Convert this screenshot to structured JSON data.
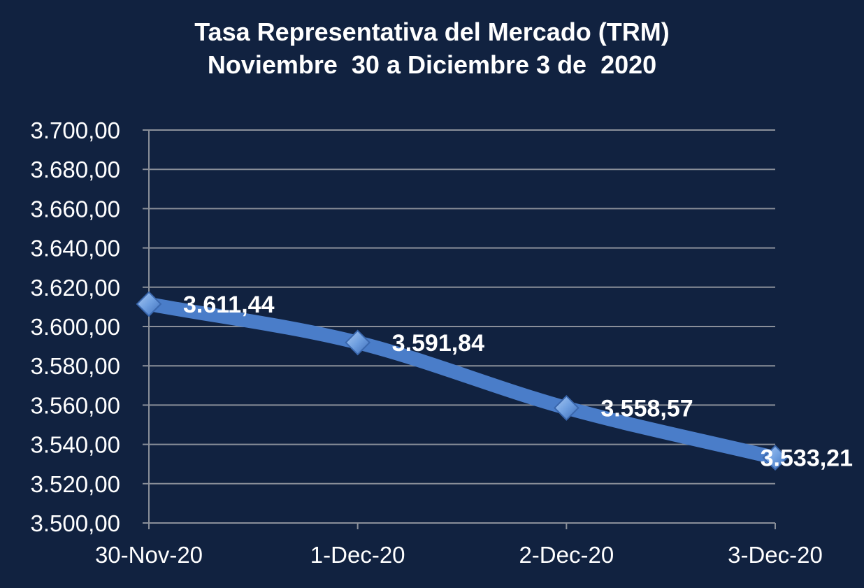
{
  "chart_data": {
    "type": "line",
    "title_line1": "Tasa Representativa del Mercado (TRM)",
    "title_line2": "Noviembre  30 a Diciembre 3 de  2020",
    "categories": [
      "30-Nov-20",
      "1-Dec-20",
      "2-Dec-20",
      "3-Dec-20"
    ],
    "series": [
      {
        "values": [
          3611.44,
          3591.84,
          3558.57,
          3533.21
        ]
      }
    ],
    "data_labels": [
      "3.611,44",
      "3.591,84",
      "3.558,57",
      "3.533,21"
    ],
    "y_ticks": [
      "3.500,00",
      "3.520,00",
      "3.540,00",
      "3.560,00",
      "3.580,00",
      "3.600,00",
      "3.620,00",
      "3.640,00",
      "3.660,00",
      "3.680,00",
      "3.700,00"
    ],
    "ylim": [
      3500,
      3700
    ],
    "y_step": 20,
    "grid": true,
    "colors": {
      "background": "#112240",
      "line": "#4a7dc9",
      "marker": "#6f9fe0",
      "grid": "#8a8f99",
      "text": "#ffffff"
    }
  }
}
